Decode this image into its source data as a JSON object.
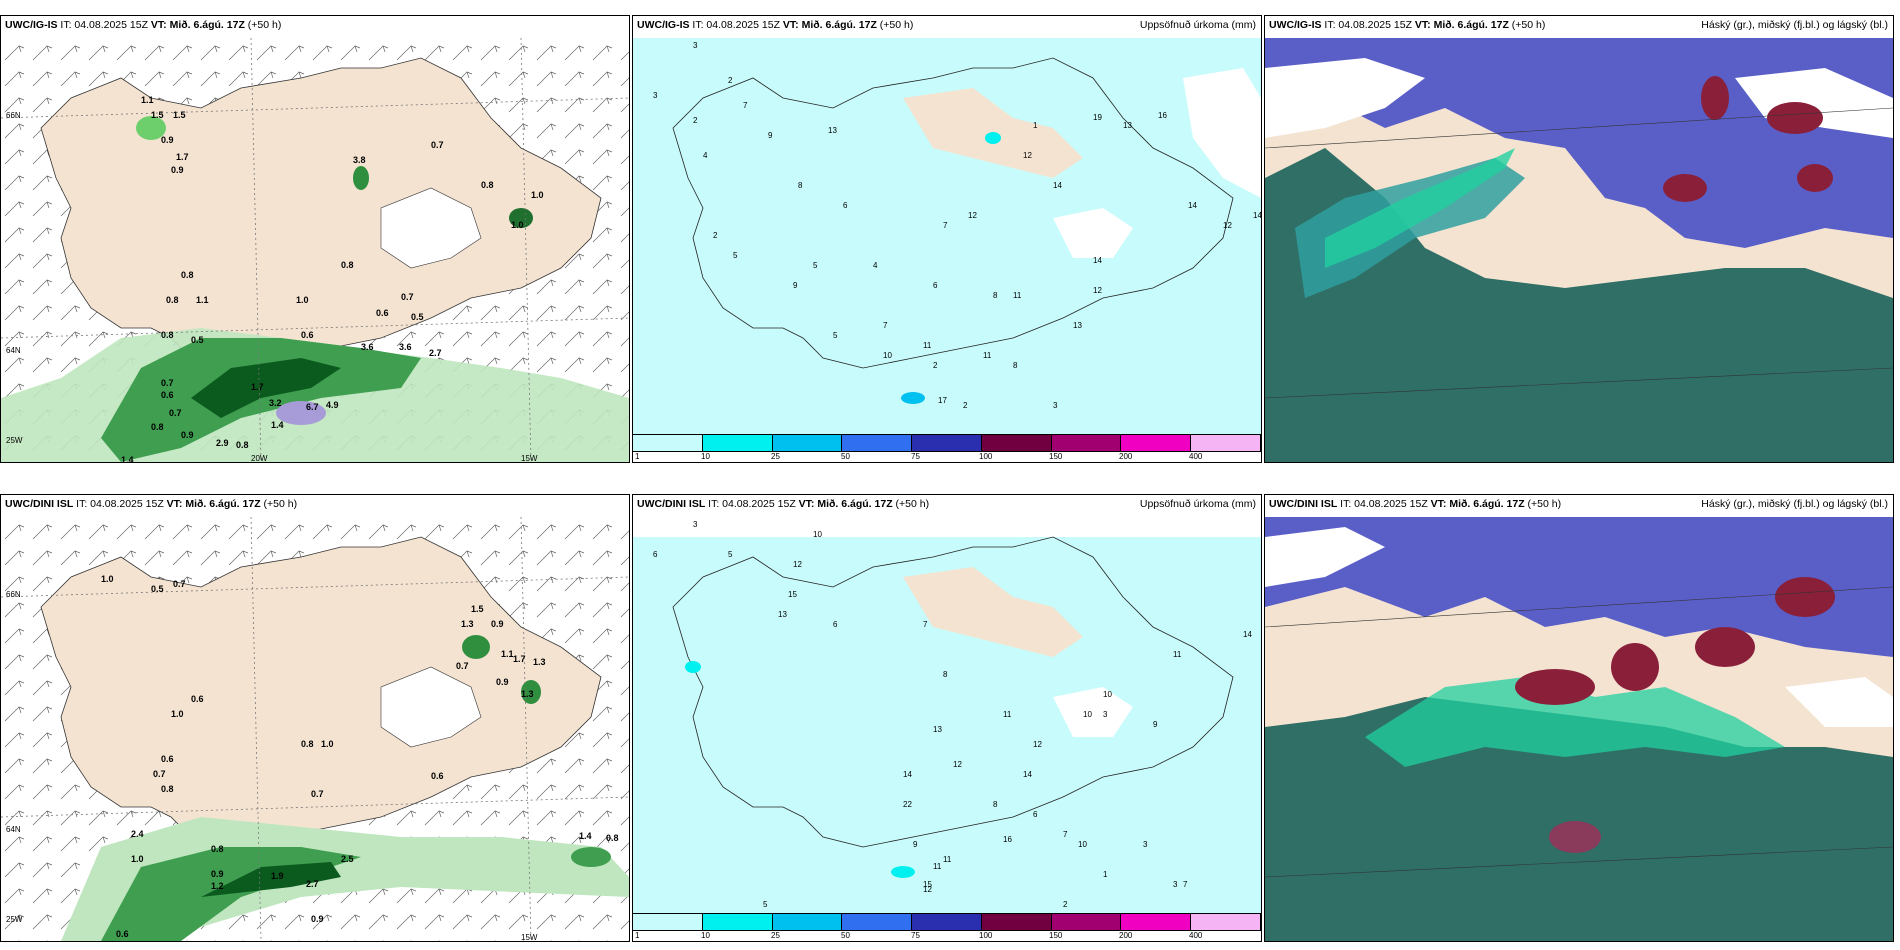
{
  "rows": [
    {
      "model": "UWC/IG-IS",
      "it": "IT: 04.08.2025 15Z",
      "vt_label": "VT:",
      "vt": "Mið. 6.ágú. 17Z",
      "lead": "(+50 h)",
      "accum_title": "Uppsöfnuð úrkoma (mm)",
      "cloud_title": "Háský (gr.), miðský (fj.bl.) og lágský (bl.)",
      "precip_labels": [
        "1.1",
        "1.5",
        "1.5",
        "0.9",
        "1.7",
        "0.9",
        "3.8",
        "0.7",
        "0.8",
        "1.0",
        "1.0",
        "0.8",
        "0.8",
        "1.1",
        "0.8",
        "1.0",
        "0.7",
        "0.6",
        "0.5",
        "0.8",
        "0.5",
        "0.6",
        "3.6",
        "3.6",
        "2.7",
        "0.7",
        "0.6",
        "0.7",
        "0.8",
        "0.9",
        "1.7",
        "3.2",
        "6.7",
        "4.9",
        "1.4",
        "2.9",
        "0.8",
        "1.4"
      ],
      "accum_labels": [
        "3",
        "3",
        "2",
        "2",
        "4",
        "7",
        "9",
        "13",
        "8",
        "6",
        "5",
        "4",
        "7",
        "11",
        "10",
        "7",
        "1",
        "19",
        "13",
        "16",
        "12",
        "14",
        "14",
        "8",
        "13",
        "14",
        "12",
        "12",
        "11",
        "12",
        "14",
        "11",
        "8",
        "5",
        "2",
        "2",
        "3",
        "2",
        "5",
        "9",
        "6",
        "17"
      ]
    },
    {
      "model": "UWC/DINI ISL",
      "it": "IT: 04.08.2025 15Z",
      "vt_label": "VT:",
      "vt": "Mið. 6.ágú. 17Z",
      "lead": "(+50 h)",
      "accum_title": "Uppsöfnuð úrkoma (mm)",
      "cloud_title": "Háský (gr.), miðský (fj.bl.) og lágský (bl.)",
      "precip_labels": [
        "1.0",
        "0.5",
        "0.7",
        "1.5",
        "1.3",
        "0.9",
        "1.1",
        "0.7",
        "0.9",
        "1.7",
        "1.3",
        "1.3",
        "0.6",
        "1.0",
        "0.8",
        "1.0",
        "0.6",
        "0.7",
        "0.8",
        "0.7",
        "0.6",
        "1.4",
        "0.8",
        "2.4",
        "1.0",
        "0.8",
        "0.9",
        "1.2",
        "1.9",
        "2.7",
        "2.5",
        "0.9",
        "0.6"
      ],
      "accum_labels": [
        "3",
        "6",
        "5",
        "10",
        "12",
        "15",
        "13",
        "6",
        "7",
        "8",
        "11",
        "13",
        "12",
        "14",
        "10",
        "10",
        "11",
        "14",
        "9",
        "8",
        "6",
        "7",
        "10",
        "12",
        "14",
        "9",
        "11",
        "16",
        "22",
        "15",
        "12",
        "11",
        "3",
        "3",
        "2",
        "1",
        "3",
        "7",
        "5"
      ]
    }
  ],
  "lon_labels": [
    "20W",
    "15W"
  ],
  "lat_labels": [
    "66N",
    "64N",
    "25W"
  ],
  "scale_ticks": [
    "1",
    "10",
    "25",
    "50",
    "75",
    "100",
    "150",
    "200",
    "400"
  ],
  "scale_colors": [
    "#c8fbfb",
    "#00f0f0",
    "#00c0f0",
    "#3070f0",
    "#2a2fb0",
    "#700040",
    "#a00070",
    "#f000c0",
    "#f5b5f5"
  ]
}
